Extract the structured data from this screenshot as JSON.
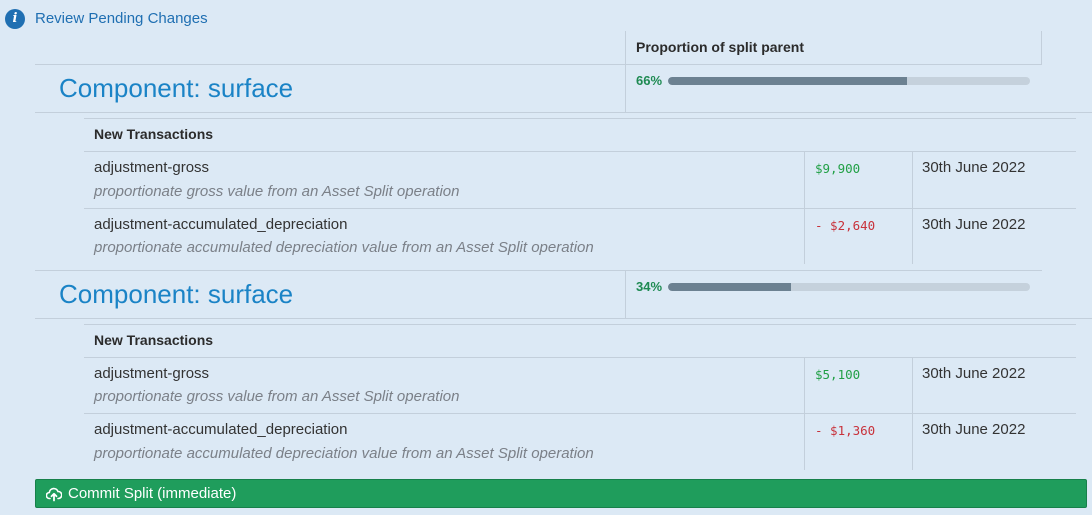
{
  "header": {
    "link": "Review Pending Changes",
    "info_icon": "i"
  },
  "table": {
    "proportion_header": "Proportion of split parent"
  },
  "components": [
    {
      "title": "Component: surface",
      "percent_label": "66%",
      "percent_value": 0.66,
      "section_header": "New Transactions",
      "transactions": [
        {
          "name": "adjustment-gross",
          "description": "proportionate gross value from an Asset Split operation",
          "amount": "$9,900",
          "amount_type": "positive",
          "date": "30th June 2022"
        },
        {
          "name": "adjustment-accumulated_depreciation",
          "description": "proportionate accumulated depreciation value from an Asset Split operation",
          "amount": "- $2,640",
          "amount_type": "negative",
          "date": "30th June 2022"
        }
      ]
    },
    {
      "title": "Component: surface",
      "percent_label": "34%",
      "percent_value": 0.34,
      "section_header": "New Transactions",
      "transactions": [
        {
          "name": "adjustment-gross",
          "description": "proportionate gross value from an Asset Split operation",
          "amount": "$5,100",
          "amount_type": "positive",
          "date": "30th June 2022"
        },
        {
          "name": "adjustment-accumulated_depreciation",
          "description": "proportionate accumulated depreciation value from an Asset Split operation",
          "amount": "- $1,360",
          "amount_type": "negative",
          "date": "30th June 2022"
        }
      ]
    }
  ],
  "actions": {
    "commit_label": "Commit Split (immediate)",
    "commit_icon": "cloud-upload-icon"
  },
  "colors": {
    "background": "#dce9f5",
    "link": "#1f6fb2",
    "title": "#1a83c6",
    "percent": "#1e8a52",
    "bar_fill": "#6c8191",
    "bar_track": "#c5d1dc",
    "positive": "#21a046",
    "negative": "#c8323b",
    "commit_button": "#1f9d5c"
  }
}
